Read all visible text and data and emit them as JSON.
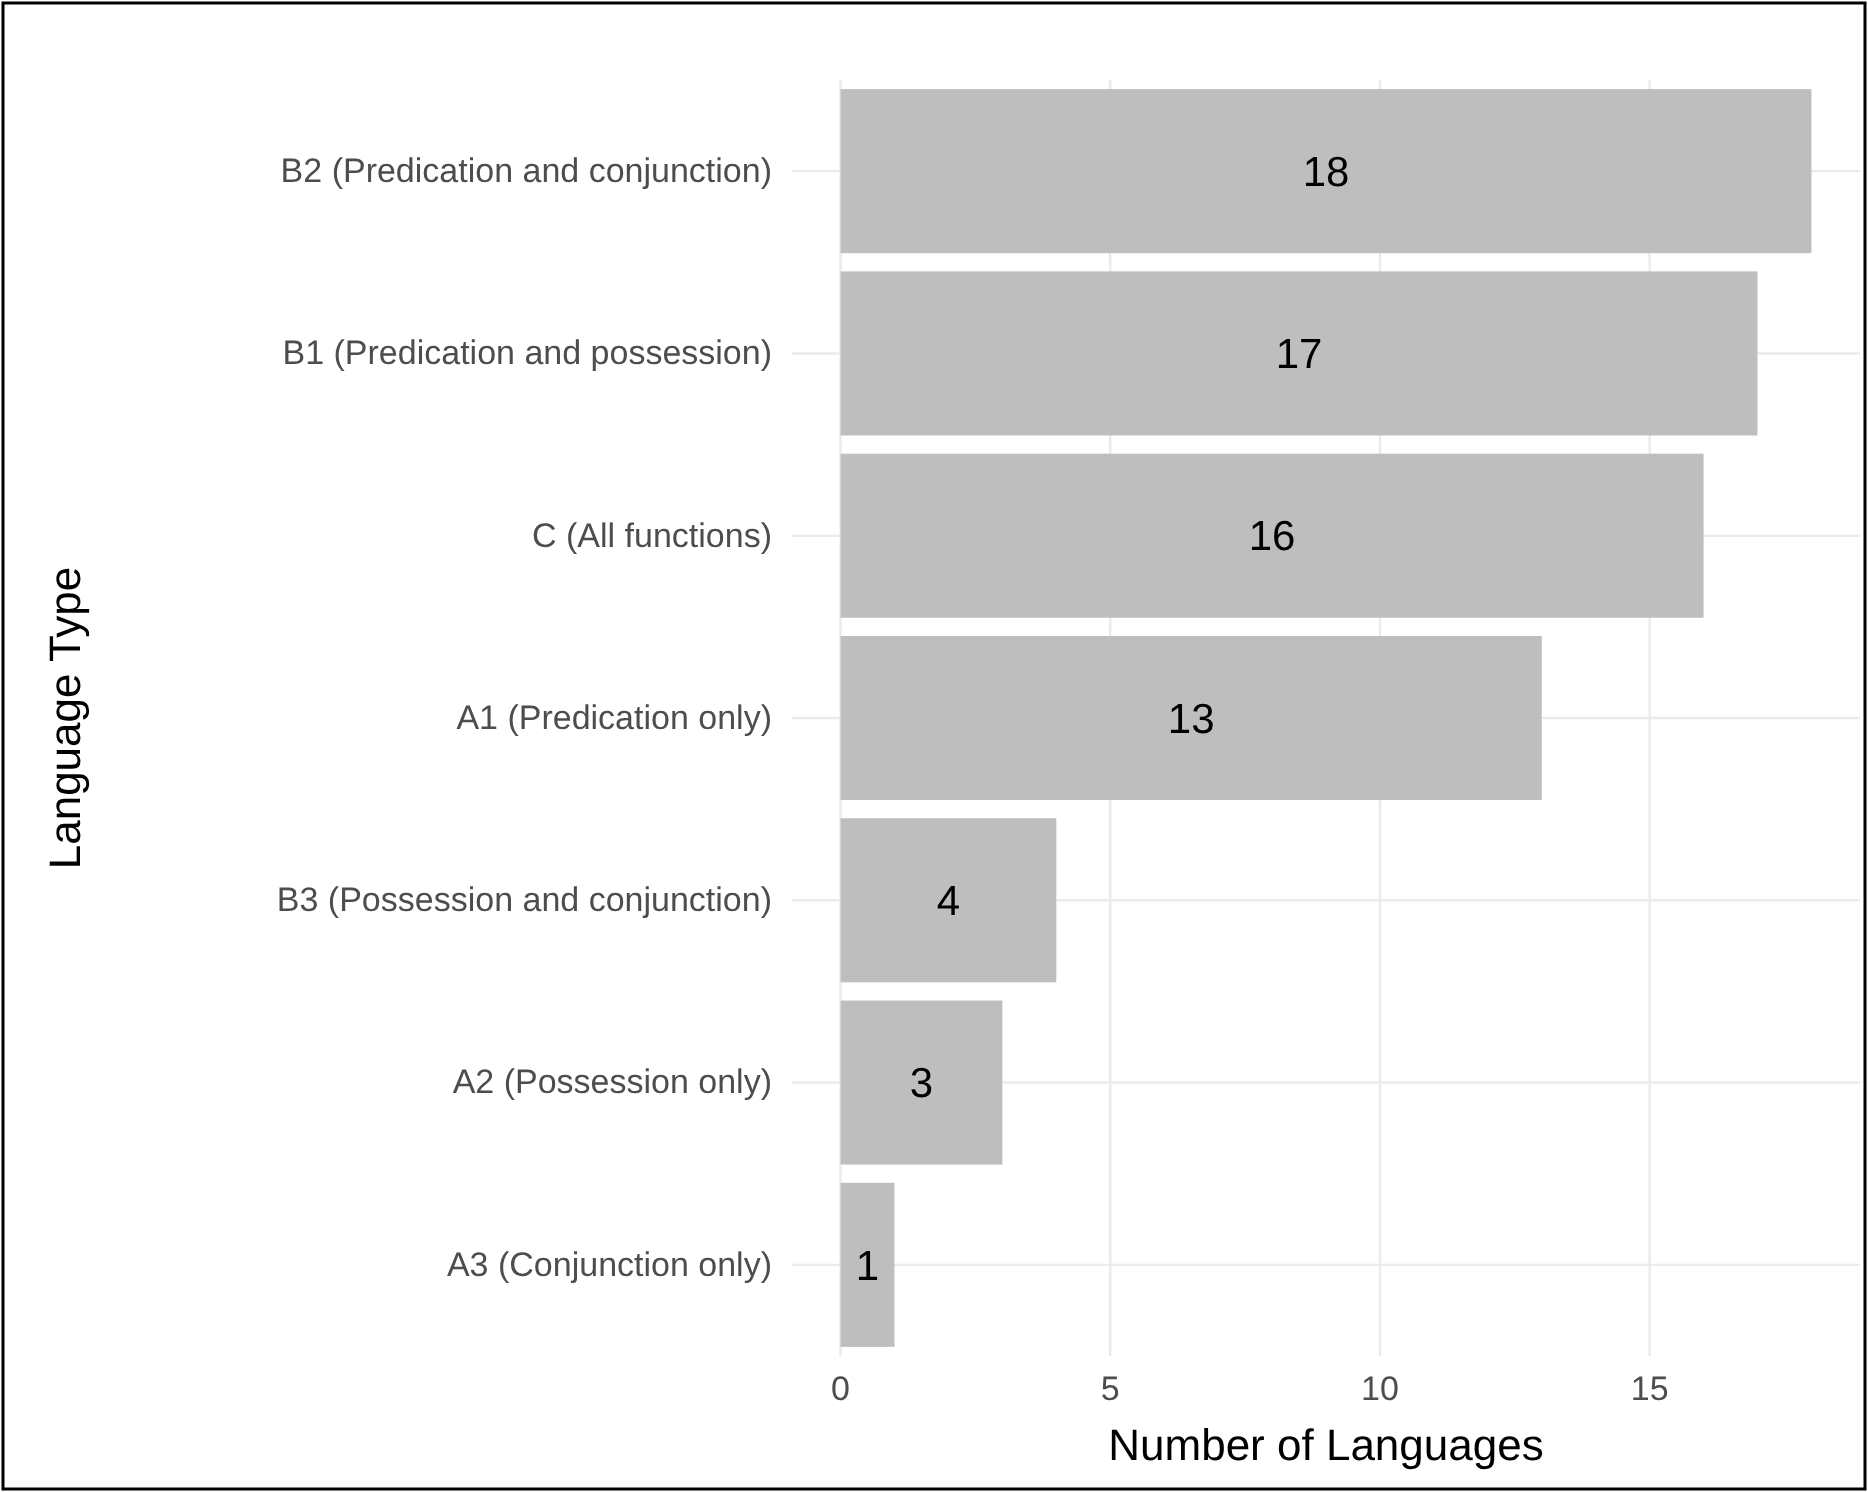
{
  "chart_data": {
    "type": "bar",
    "orientation": "horizontal",
    "categories": [
      "B2 (Predication and conjunction)",
      "B1 (Predication and possession)",
      "C (All functions)",
      "A1 (Predication only)",
      "B3 (Possession and conjunction)",
      "A2 (Possession only)",
      "A3 (Conjunction only)"
    ],
    "values": [
      18,
      17,
      16,
      13,
      4,
      3,
      1
    ],
    "color": "#bebebe",
    "data_labels": true,
    "xlim": [
      -0.9,
      18.9
    ],
    "xticks": [
      0,
      5,
      10,
      15
    ],
    "grid": true,
    "xlabel": "Number of Languages",
    "ylabel": "Language Type"
  }
}
